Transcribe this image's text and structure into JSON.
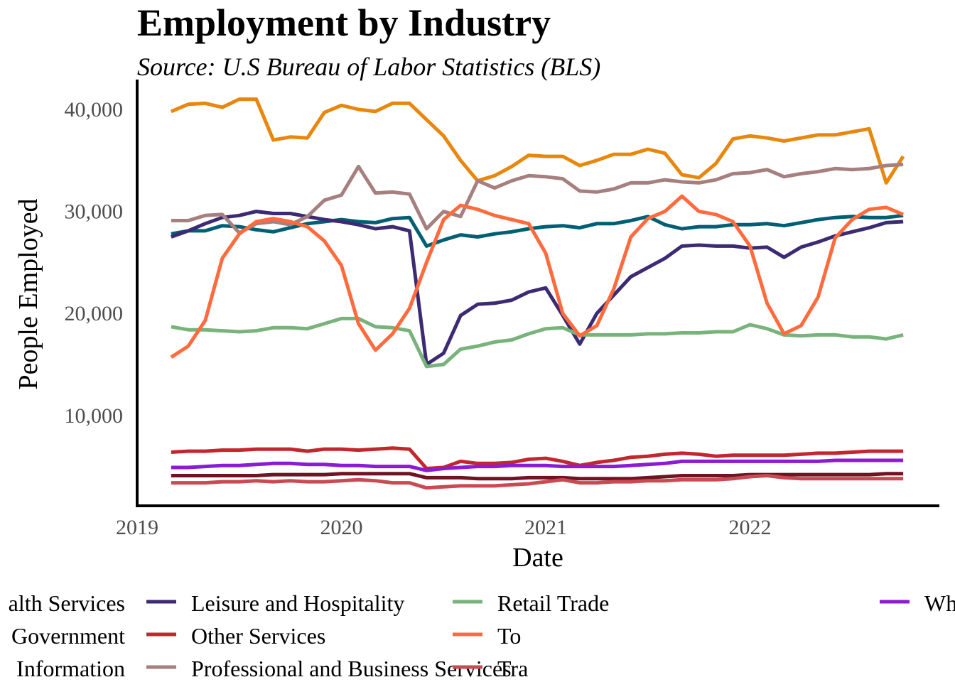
{
  "chart_data": {
    "type": "line",
    "title": "Employment by Industry",
    "subtitle": "Source: U.S Bureau of Labor Statistics (BLS)",
    "xlabel": "Date",
    "ylabel": "People Employed",
    "x_ticks": [
      "2019",
      "2020",
      "2021",
      "2022"
    ],
    "y_ticks": [
      "10,000",
      "20,000",
      "30,000",
      "40,000"
    ],
    "xlim": [
      "2019-01-01",
      "2022-11-01"
    ],
    "ylim": [
      1500,
      42500
    ],
    "grid": false,
    "legend_position": "bottom",
    "x": [
      "2019-03",
      "2019-04",
      "2019-05",
      "2019-06",
      "2019-07",
      "2019-08",
      "2019-09",
      "2019-10",
      "2019-11",
      "2019-12",
      "2020-01",
      "2020-02",
      "2020-03",
      "2020-04",
      "2020-05",
      "2020-06",
      "2020-07",
      "2020-08",
      "2020-09",
      "2020-10",
      "2020-11",
      "2020-12",
      "2021-01",
      "2021-02",
      "2021-03",
      "2021-04",
      "2021-05",
      "2021-06",
      "2021-07",
      "2021-08",
      "2021-09",
      "2021-10",
      "2021-11",
      "2021-12",
      "2022-01",
      "2022-02",
      "2022-03",
      "2022-04",
      "2022-05",
      "2022-06",
      "2022-07",
      "2022-08",
      "2022-09",
      "2022-10"
    ],
    "series": [
      {
        "name": "Education and Health Services",
        "visible_label": "alth Services",
        "color": "#005f73",
        "values": [
          27800,
          28100,
          28100,
          28600,
          28500,
          28200,
          28000,
          28400,
          28800,
          29000,
          29200,
          29000,
          28900,
          29300,
          29400,
          26600,
          27200,
          27700,
          27500,
          27800,
          28000,
          28300,
          28500,
          28600,
          28400,
          28800,
          28800,
          29100,
          29500,
          28700,
          28300,
          28500,
          28500,
          28700,
          28700,
          28800,
          28600,
          28900,
          29200,
          29400,
          29500,
          29400,
          29400,
          29600
        ]
      },
      {
        "name": "Government",
        "color": "#e8870e",
        "values": [
          39800,
          40500,
          40600,
          40200,
          41000,
          41000,
          37000,
          37300,
          37200,
          39700,
          40400,
          40000,
          39800,
          40600,
          40600,
          39000,
          37400,
          35000,
          33000,
          33500,
          34400,
          35500,
          35400,
          35400,
          34500,
          35000,
          35600,
          35600,
          36100,
          35700,
          33600,
          33300,
          34700,
          37100,
          37400,
          37200,
          36900,
          37200,
          37500,
          37500,
          37800,
          38100,
          32800,
          35400
        ]
      },
      {
        "name": "Information",
        "color": "#6e1423",
        "values": [
          4100,
          4100,
          4100,
          4100,
          4100,
          4100,
          4200,
          4200,
          4200,
          4200,
          4300,
          4300,
          4300,
          4300,
          4300,
          3900,
          3900,
          3900,
          3800,
          3800,
          3800,
          3900,
          3900,
          3900,
          3800,
          3800,
          3800,
          3800,
          3900,
          4000,
          4100,
          4100,
          4100,
          4100,
          4200,
          4200,
          4200,
          4200,
          4200,
          4200,
          4200,
          4200,
          4300,
          4300
        ]
      },
      {
        "name": "Leisure and Hospitality",
        "color": "#3c2a73",
        "values": [
          27500,
          28100,
          28800,
          29400,
          29600,
          30000,
          29800,
          29800,
          29500,
          29200,
          29000,
          28700,
          28300,
          28500,
          28100,
          15000,
          16100,
          19800,
          20900,
          21000,
          21300,
          22100,
          22500,
          19800,
          17000,
          20000,
          21800,
          23600,
          24500,
          25400,
          26600,
          26700,
          26600,
          26600,
          26400,
          26500,
          25500,
          26500,
          27000,
          27600,
          28000,
          28400,
          28900,
          29000
        ]
      },
      {
        "name": "Other Services",
        "color": "#c1272d",
        "values": [
          6400,
          6500,
          6500,
          6600,
          6600,
          6700,
          6700,
          6700,
          6500,
          6700,
          6700,
          6600,
          6700,
          6800,
          6700,
          4800,
          4900,
          5500,
          5300,
          5300,
          5400,
          5700,
          5800,
          5500,
          5100,
          5400,
          5600,
          5900,
          6000,
          6200,
          6300,
          6200,
          6000,
          6100,
          6100,
          6100,
          6100,
          6200,
          6300,
          6300,
          6400,
          6500,
          6500,
          6500
        ]
      },
      {
        "name": "Professional and Business Services",
        "color": "#a67f7f",
        "values": [
          29100,
          29100,
          29600,
          29700,
          27900,
          28800,
          29000,
          28700,
          29500,
          31100,
          31600,
          34400,
          31800,
          31900,
          31700,
          28300,
          30000,
          29500,
          33000,
          32300,
          33000,
          33500,
          33400,
          33200,
          32000,
          31900,
          32200,
          32800,
          32800,
          33100,
          32900,
          32800,
          33100,
          33700,
          33800,
          34100,
          33400,
          33700,
          33900,
          34200,
          34100,
          34200,
          34500,
          34600
        ]
      },
      {
        "name": "Retail Trade",
        "color": "#78b37b",
        "values": [
          18700,
          18400,
          18400,
          18300,
          18200,
          18300,
          18600,
          18600,
          18500,
          19000,
          19500,
          19500,
          18700,
          18600,
          18300,
          14800,
          15000,
          16500,
          16800,
          17200,
          17400,
          18000,
          18500,
          18600,
          17900,
          17900,
          17900,
          17900,
          18000,
          18000,
          18100,
          18100,
          18200,
          18200,
          18900,
          18500,
          17900,
          17800,
          17900,
          17900,
          17700,
          17700,
          17500,
          17900
        ]
      },
      {
        "name": "Total Construction",
        "visible_label": "To",
        "color": "#ff6b3d",
        "values": [
          15700,
          16800,
          19300,
          25400,
          27800,
          29000,
          29300,
          29000,
          28500,
          27100,
          24700,
          19000,
          16400,
          18000,
          20500,
          25000,
          29200,
          30600,
          30200,
          29600,
          29200,
          28800,
          25900,
          20000,
          17800,
          18800,
          22400,
          27500,
          29300,
          30000,
          31500,
          30000,
          29700,
          29000,
          26600,
          21000,
          18000,
          18800,
          21600,
          27400,
          29200,
          30200,
          30400,
          29700
        ]
      },
      {
        "name": "Transportation and Warehousing",
        "visible_label": "Tra",
        "color": "#c94a53",
        "values": [
          3400,
          3400,
          3400,
          3500,
          3500,
          3600,
          3500,
          3600,
          3500,
          3500,
          3600,
          3700,
          3600,
          3400,
          3400,
          2900,
          3000,
          3100,
          3100,
          3100,
          3200,
          3300,
          3500,
          3700,
          3400,
          3400,
          3500,
          3500,
          3600,
          3600,
          3700,
          3700,
          3700,
          3800,
          4000,
          4100,
          3900,
          3800,
          3800,
          3800,
          3800,
          3800,
          3800,
          3800
        ]
      },
      {
        "name": "Wholesale Trade",
        "visible_label": "Wh",
        "color": "#8c1bd4",
        "values": [
          4900,
          4900,
          5000,
          5100,
          5100,
          5200,
          5300,
          5300,
          5200,
          5200,
          5100,
          5100,
          5000,
          5000,
          5000,
          4600,
          4800,
          4900,
          5000,
          5000,
          5100,
          5100,
          5100,
          5000,
          5000,
          5000,
          5000,
          5100,
          5200,
          5300,
          5500,
          5500,
          5500,
          5500,
          5500,
          5500,
          5500,
          5500,
          5500,
          5600,
          5600,
          5600,
          5600,
          5600
        ]
      }
    ]
  }
}
